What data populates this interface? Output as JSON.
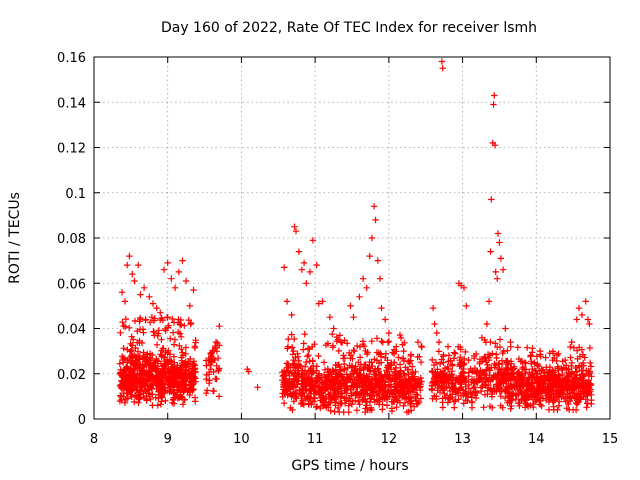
{
  "chart_data": {
    "type": "scatter",
    "title": "Day 160 of 2022, Rate Of TEC Index for receiver lsmh",
    "xlabel": "GPS time / hours",
    "ylabel": "ROTI / TECUs",
    "xlim": [
      8,
      15
    ],
    "ylim": [
      0,
      0.16
    ],
    "xticks": [
      8,
      9,
      10,
      11,
      12,
      13,
      14,
      15
    ],
    "xtick_labels": [
      "8",
      "9",
      "10",
      "11",
      "12",
      "13",
      "14",
      "15"
    ],
    "yticks": [
      0,
      0.02,
      0.04,
      0.06,
      0.08,
      0.1,
      0.12,
      0.14,
      0.16
    ],
    "ytick_labels": [
      "0",
      "0.02",
      "0.04",
      "0.06",
      "0.08",
      "0.1",
      "0.12",
      "0.14",
      "0.16"
    ],
    "grid": true,
    "marker": "+",
    "color": "#ff0000",
    "series": [
      {
        "name": "ROTI",
        "points": [
          [
            8.38,
            0.056
          ],
          [
            8.42,
            0.052
          ],
          [
            8.45,
            0.068
          ],
          [
            8.48,
            0.072
          ],
          [
            8.52,
            0.064
          ],
          [
            8.55,
            0.061
          ],
          [
            8.6,
            0.068
          ],
          [
            8.63,
            0.055
          ],
          [
            8.68,
            0.058
          ],
          [
            8.75,
            0.054
          ],
          [
            8.8,
            0.051
          ],
          [
            8.85,
            0.049
          ],
          [
            8.9,
            0.047
          ],
          [
            8.95,
            0.066
          ],
          [
            9.0,
            0.069
          ],
          [
            9.05,
            0.062
          ],
          [
            9.1,
            0.058
          ],
          [
            9.15,
            0.065
          ],
          [
            9.2,
            0.07
          ],
          [
            9.25,
            0.061
          ],
          [
            9.3,
            0.05
          ],
          [
            9.35,
            0.057
          ],
          [
            9.0,
            0.045
          ],
          [
            8.7,
            0.044
          ],
          [
            9.7,
            0.041
          ],
          [
            10.08,
            0.022
          ],
          [
            10.1,
            0.021
          ],
          [
            10.22,
            0.014
          ],
          [
            10.58,
            0.067
          ],
          [
            10.62,
            0.052
          ],
          [
            10.68,
            0.046
          ],
          [
            10.72,
            0.085
          ],
          [
            10.74,
            0.083
          ],
          [
            10.78,
            0.074
          ],
          [
            10.82,
            0.066
          ],
          [
            10.85,
            0.069
          ],
          [
            10.88,
            0.06
          ],
          [
            10.93,
            0.065
          ],
          [
            10.97,
            0.079
          ],
          [
            11.02,
            0.068
          ],
          [
            11.05,
            0.051
          ],
          [
            11.1,
            0.052
          ],
          [
            11.2,
            0.045
          ],
          [
            11.25,
            0.04
          ],
          [
            11.35,
            0.034
          ],
          [
            11.48,
            0.05
          ],
          [
            11.52,
            0.045
          ],
          [
            11.6,
            0.054
          ],
          [
            11.65,
            0.062
          ],
          [
            11.7,
            0.058
          ],
          [
            11.74,
            0.072
          ],
          [
            11.77,
            0.08
          ],
          [
            11.8,
            0.094
          ],
          [
            11.82,
            0.088
          ],
          [
            11.85,
            0.07
          ],
          [
            11.88,
            0.062
          ],
          [
            11.9,
            0.049
          ],
          [
            11.95,
            0.044
          ],
          [
            12.0,
            0.038
          ],
          [
            12.1,
            0.032
          ],
          [
            12.2,
            0.03
          ],
          [
            12.6,
            0.049
          ],
          [
            12.62,
            0.042
          ],
          [
            12.65,
            0.038
          ],
          [
            12.68,
            0.034
          ],
          [
            12.72,
            0.158
          ],
          [
            12.73,
            0.155
          ],
          [
            12.95,
            0.06
          ],
          [
            12.98,
            0.059
          ],
          [
            13.02,
            0.058
          ],
          [
            13.05,
            0.05
          ],
          [
            13.3,
            0.035
          ],
          [
            13.33,
            0.042
          ],
          [
            13.36,
            0.052
          ],
          [
            13.38,
            0.074
          ],
          [
            13.39,
            0.097
          ],
          [
            13.41,
            0.122
          ],
          [
            13.42,
            0.139
          ],
          [
            13.43,
            0.143
          ],
          [
            13.44,
            0.121
          ],
          [
            13.45,
            0.065
          ],
          [
            13.47,
            0.062
          ],
          [
            13.48,
            0.082
          ],
          [
            13.5,
            0.078
          ],
          [
            13.52,
            0.071
          ],
          [
            13.55,
            0.066
          ],
          [
            13.58,
            0.04
          ],
          [
            13.65,
            0.034
          ],
          [
            14.48,
            0.034
          ],
          [
            14.55,
            0.044
          ],
          [
            14.58,
            0.049
          ],
          [
            14.62,
            0.046
          ],
          [
            14.67,
            0.052
          ],
          [
            14.7,
            0.044
          ],
          [
            14.72,
            0.042
          ]
        ],
        "clusters": [
          {
            "x0": 8.35,
            "x1": 9.38,
            "ymin": 0.006,
            "ymax": 0.045,
            "ypeak": 0.018,
            "count": 720
          },
          {
            "x0": 9.52,
            "x1": 9.7,
            "ymin": 0.01,
            "ymax": 0.034,
            "ypeak": 0.022,
            "count": 45
          },
          {
            "x0": 10.55,
            "x1": 12.45,
            "ymin": 0.003,
            "ymax": 0.038,
            "ypeak": 0.014,
            "count": 950
          },
          {
            "x0": 12.58,
            "x1": 13.6,
            "ymin": 0.005,
            "ymax": 0.036,
            "ypeak": 0.016,
            "count": 380
          },
          {
            "x0": 13.6,
            "x1": 14.75,
            "ymin": 0.004,
            "ymax": 0.032,
            "ypeak": 0.014,
            "count": 640
          }
        ]
      }
    ]
  }
}
